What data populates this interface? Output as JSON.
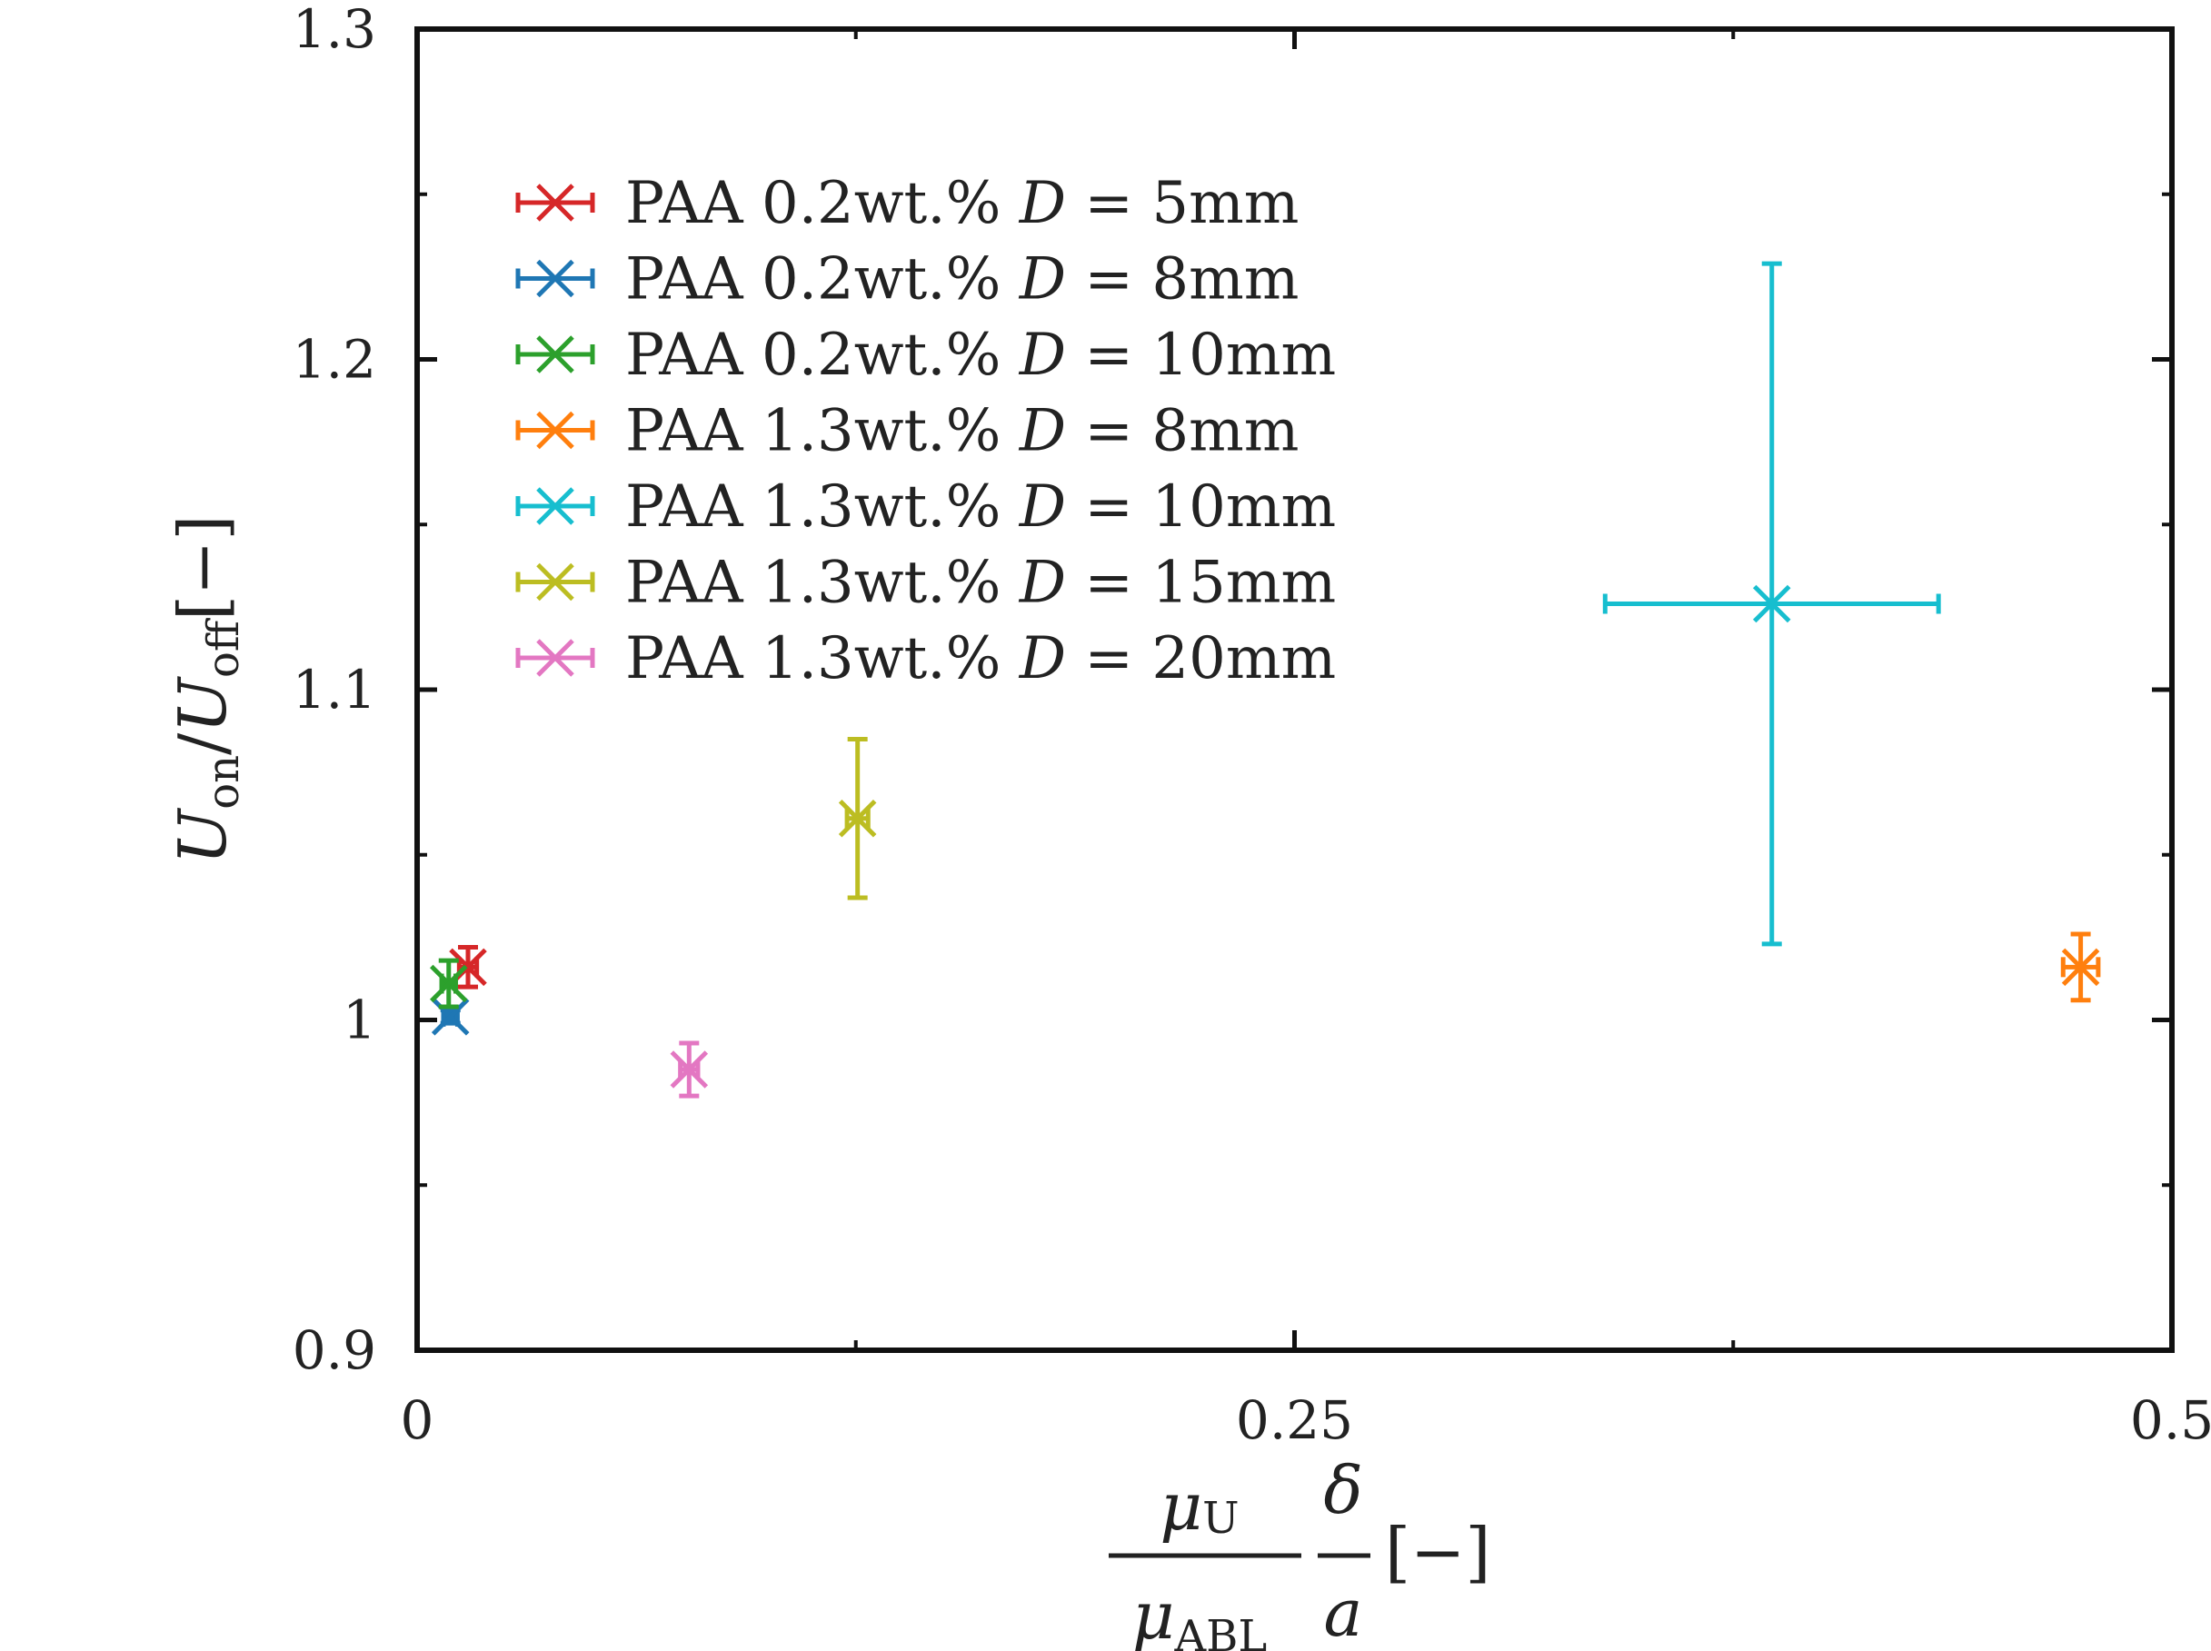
{
  "chart_data": {
    "type": "scatter",
    "title": "",
    "xlabel": {
      "mu_num": "μ",
      "mu_num_sub": "U",
      "mu_den": "μ",
      "mu_den_sub": "ABL",
      "delta": "δ",
      "a": "a",
      "unit": "[−]"
    },
    "ylabel": {
      "u1": "U",
      "u1_sub": "on",
      "slash": "/",
      "u2": "U",
      "u2_sub": "off",
      "unit": "[−]"
    },
    "xlim": [
      0,
      0.5
    ],
    "ylim": [
      0.9,
      1.3
    ],
    "x_ticks": [
      0,
      0.25,
      0.5
    ],
    "x_tick_labels": [
      "0",
      "0.25",
      "0.5"
    ],
    "x_minor_ticks": [
      0.125,
      0.375
    ],
    "y_ticks": [
      0.9,
      1.0,
      1.1,
      1.2,
      1.3
    ],
    "y_tick_labels": [
      "0.9",
      "1",
      "1.1",
      "1.2",
      "1.3"
    ],
    "y_minor_ticks": [
      0.95,
      1.05,
      1.15,
      1.25
    ],
    "legend_position": "top-left",
    "series": [
      {
        "name": "PAA 0.2wt.% D = 5mm",
        "label": {
          "prefix": "PAA 0.2wt.% ",
          "var": "D",
          "suffix": " = 5mm"
        },
        "color": "#d62728",
        "x": 0.0145,
        "y": 1.016,
        "xerr": 0.0025,
        "yerr": 0.006
      },
      {
        "name": "PAA 0.2wt.% D = 8mm",
        "label": {
          "prefix": "PAA 0.2wt.% ",
          "var": "D",
          "suffix": " = 8mm"
        },
        "color": "#1f77b4",
        "x": 0.0095,
        "y": 1.001,
        "xerr": 0.002,
        "yerr": 0.002
      },
      {
        "name": "PAA 0.2wt.% D = 10mm",
        "label": {
          "prefix": "PAA 0.2wt.% ",
          "var": "D",
          "suffix": " = 10mm"
        },
        "color": "#2ca02c",
        "x": 0.009,
        "y": 1.011,
        "xerr": 0.002,
        "yerr": 0.007
      },
      {
        "name": "PAA 1.3wt.% D = 8mm",
        "label": {
          "prefix": "PAA 1.3wt.% ",
          "var": "D",
          "suffix": " = 8mm"
        },
        "color": "#ff7f0e",
        "x": 0.474,
        "y": 1.016,
        "xerr": 0.005,
        "yerr": 0.01
      },
      {
        "name": "PAA 1.3wt.% D = 10mm",
        "label": {
          "prefix": "PAA 1.3wt.% ",
          "var": "D",
          "suffix": " = 10mm"
        },
        "color": "#17becf",
        "x": 0.386,
        "y": 1.126,
        "xerr": 0.0475,
        "yerr": 0.103
      },
      {
        "name": "PAA 1.3wt.% D = 15mm",
        "label": {
          "prefix": "PAA 1.3wt.% ",
          "var": "D",
          "suffix": " = 15mm"
        },
        "color": "#bcbd22",
        "x": 0.1255,
        "y": 1.061,
        "xerr": 0.003,
        "yerr": 0.024
      },
      {
        "name": "PAA 1.3wt.% D = 20mm",
        "label": {
          "prefix": "PAA 1.3wt.% ",
          "var": "D",
          "suffix": " = 20mm"
        },
        "color": "#e377c2",
        "x": 0.0775,
        "y": 0.985,
        "xerr": 0.0025,
        "yerr": 0.008
      }
    ]
  }
}
